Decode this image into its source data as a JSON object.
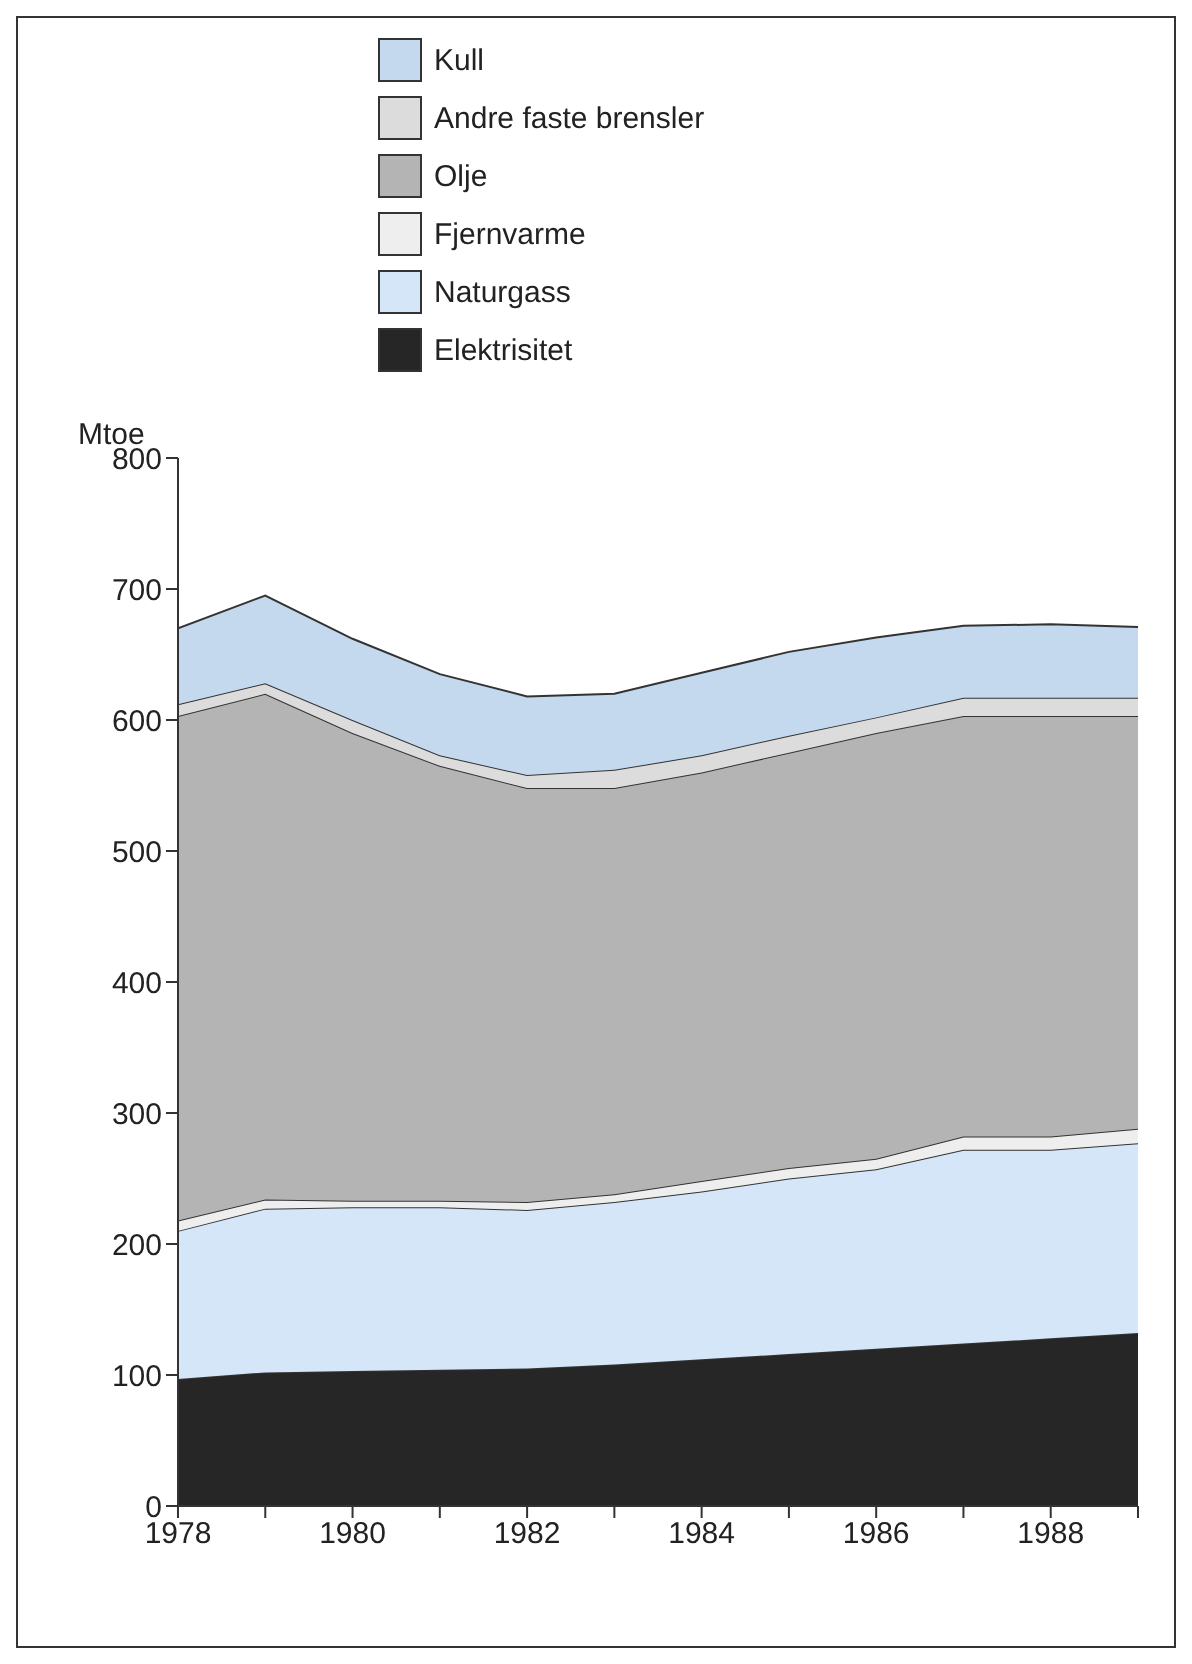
{
  "chart_data": {
    "type": "area",
    "stacked": true,
    "ylabel": "Mtoe",
    "x": [
      1978,
      1979,
      1980,
      1981,
      1982,
      1983,
      1984,
      1985,
      1986,
      1987,
      1988,
      1989
    ],
    "xlim": [
      1978,
      1989
    ],
    "xticks": [
      1978,
      {
        "value": 1979,
        "label": null
      },
      1980,
      {
        "value": 1981,
        "label": null
      },
      1982,
      {
        "value": 1983,
        "label": null
      },
      1984,
      {
        "value": 1985,
        "label": null
      },
      1986,
      {
        "value": 1987,
        "label": null
      },
      1988,
      {
        "value": 1989,
        "label": null
      }
    ],
    "ylim": [
      0,
      800
    ],
    "yticks": [
      0,
      100,
      200,
      300,
      400,
      500,
      600,
      700,
      800
    ],
    "legend": "top",
    "series": [
      {
        "name": "Elektrisitet",
        "color": "#262626",
        "values": [
          97,
          102,
          103,
          104,
          105,
          108,
          112,
          116,
          120,
          124,
          128,
          132
        ]
      },
      {
        "name": "Naturgass",
        "color": "#d4e6f7",
        "values": [
          113,
          125,
          125,
          124,
          121,
          124,
          128,
          134,
          137,
          148,
          144,
          145
        ]
      },
      {
        "name": "Fjernvarme",
        "color": "#eeeeee",
        "values": [
          8,
          7,
          5,
          5,
          6,
          6,
          8,
          8,
          8,
          10,
          10,
          11
        ]
      },
      {
        "name": "Olje",
        "color": "#b4b4b4",
        "values": [
          385,
          386,
          357,
          332,
          316,
          310,
          312,
          317,
          325,
          321,
          321,
          315
        ]
      },
      {
        "name": "Andre faste brensler",
        "color": "#dcdcdc",
        "values": [
          9,
          8,
          10,
          8,
          10,
          14,
          13,
          13,
          12,
          14,
          14,
          14
        ]
      },
      {
        "name": "Kull",
        "color": "#c4d8ee",
        "values": [
          58,
          67,
          62,
          62,
          60,
          58,
          63,
          64,
          61,
          55,
          56,
          54
        ]
      }
    ]
  }
}
